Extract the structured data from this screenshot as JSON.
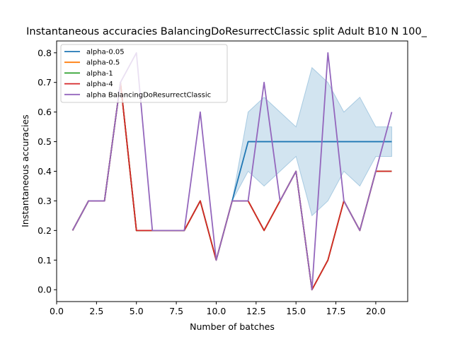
{
  "chart_data": {
    "type": "line",
    "title": "Instantaneous accuracies BalancingDoResurrectClassic split Adult B10 N 100_",
    "xlabel": "Number of batches",
    "ylabel": "Instantaneous accuracies",
    "xlim": [
      0,
      22
    ],
    "ylim": [
      -0.04,
      0.84
    ],
    "xticks": [
      0,
      2.5,
      5,
      7.5,
      10,
      12.5,
      15,
      17.5,
      20
    ],
    "xtick_labels": [
      "0.0",
      "2.5",
      "5.0",
      "7.5",
      "10.0",
      "12.5",
      "15.0",
      "17.5",
      "20.0"
    ],
    "yticks": [
      0,
      0.1,
      0.2,
      0.3,
      0.4,
      0.5,
      0.6,
      0.7,
      0.8
    ],
    "ytick_labels": [
      "0.0",
      "0.1",
      "0.2",
      "0.3",
      "0.4",
      "0.5",
      "0.6",
      "0.7",
      "0.8"
    ],
    "grid": false,
    "legend_position": "top-left",
    "x": [
      1,
      2,
      3,
      4,
      5,
      6,
      7,
      8,
      9,
      10,
      11,
      12,
      13,
      14,
      15,
      16,
      17,
      18,
      19,
      20,
      21
    ],
    "series": [
      {
        "name": "alpha-0.05",
        "color": "#1f77b4",
        "values": [
          0.2,
          0.3,
          0.3,
          0.7,
          0.2,
          0.2,
          0.2,
          0.2,
          0.3,
          0.1,
          0.3,
          0.5,
          0.5,
          0.5,
          0.5,
          0.5,
          0.5,
          0.5,
          0.5,
          0.5,
          0.5
        ]
      },
      {
        "name": "alpha-0.5",
        "color": "#ff7f0e",
        "values": [
          0.2,
          0.3,
          0.3,
          0.7,
          0.2,
          0.2,
          0.2,
          0.2,
          0.3,
          0.1,
          0.3,
          0.3,
          0.2,
          0.3,
          0.4,
          0.0,
          0.1,
          0.3,
          0.2,
          0.4,
          0.4
        ]
      },
      {
        "name": "alpha-1",
        "color": "#2ca02c",
        "values": [
          0.2,
          0.3,
          0.3,
          0.7,
          0.2,
          0.2,
          0.2,
          0.2,
          0.3,
          0.1,
          0.3,
          0.3,
          0.2,
          0.3,
          0.4,
          0.0,
          0.1,
          0.3,
          0.2,
          0.4,
          0.4
        ]
      },
      {
        "name": "alpha-4",
        "color": "#d62728",
        "values": [
          0.2,
          0.3,
          0.3,
          0.7,
          0.2,
          0.2,
          0.2,
          0.2,
          0.3,
          0.1,
          0.3,
          0.3,
          0.2,
          0.3,
          0.4,
          0.0,
          0.1,
          0.3,
          0.2,
          0.4,
          0.4
        ]
      },
      {
        "name": "alpha BalancingDoResurrectClassic",
        "color": "#9467bd",
        "values": [
          0.2,
          0.3,
          0.3,
          0.7,
          0.8,
          0.2,
          0.2,
          0.2,
          0.6,
          0.1,
          0.3,
          0.3,
          0.7,
          0.3,
          0.4,
          0.0,
          0.8,
          0.3,
          0.2,
          0.4,
          0.6
        ]
      }
    ],
    "band": {
      "series": "alpha-0.05",
      "color": "#1f77b4",
      "opacity": 0.2,
      "x": [
        11,
        12,
        13,
        14,
        15,
        16,
        17,
        18,
        19,
        20,
        21
      ],
      "lower": [
        0.3,
        0.4,
        0.35,
        0.4,
        0.45,
        0.25,
        0.3,
        0.4,
        0.35,
        0.45,
        0.45
      ],
      "upper": [
        0.3,
        0.6,
        0.65,
        0.6,
        0.55,
        0.75,
        0.7,
        0.6,
        0.65,
        0.55,
        0.55
      ]
    }
  }
}
